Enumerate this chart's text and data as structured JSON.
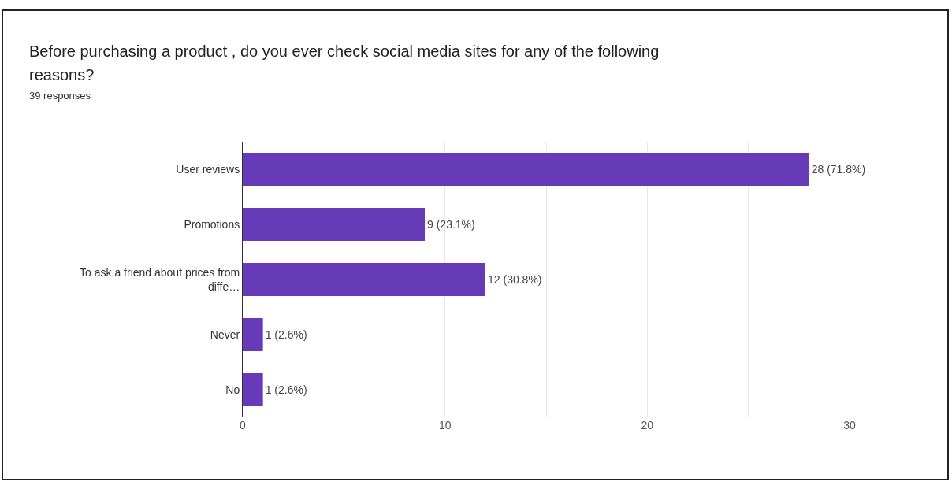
{
  "chart_data": {
    "type": "bar",
    "orientation": "horizontal",
    "title": "Before purchasing a product , do you ever check social media sites for any of the following reasons?",
    "subtitle": "39 responses",
    "categories": [
      "User reviews",
      "Promotions",
      "To ask a friend about prices from diffe…",
      "Never",
      "No"
    ],
    "values": [
      28,
      9,
      12,
      1,
      1
    ],
    "value_labels": [
      "28 (71.8%)",
      "9 (23.1%)",
      "12 (30.8%)",
      "1 (2.6%)",
      "1 (2.6%)"
    ],
    "color": "#673ab7",
    "xlim": [
      0,
      30
    ],
    "xticks": [
      0,
      {
        "value": 5,
        "label": null
      },
      10,
      {
        "value": 15,
        "label": null
      },
      20,
      {
        "value": 25,
        "label": null
      },
      30
    ],
    "grid": "x"
  }
}
